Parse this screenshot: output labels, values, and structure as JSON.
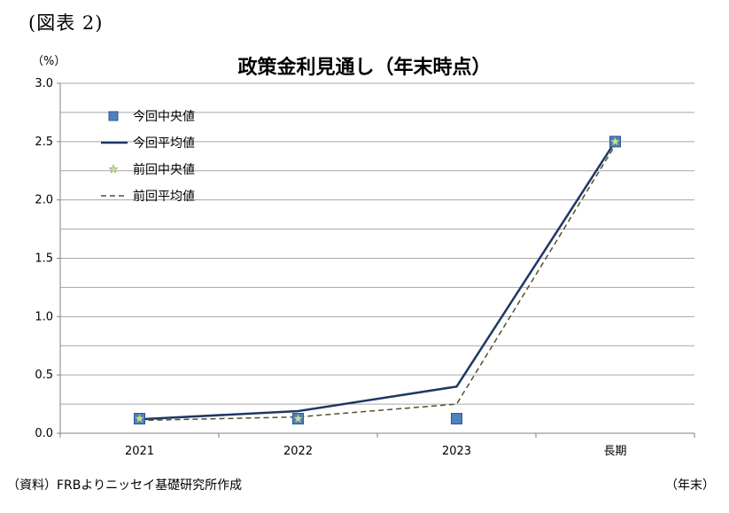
{
  "figure_label": "(図表 2)",
  "unit_label": "（%）",
  "source_note": "（資料）FRBよりニッセイ基礎研究所作成",
  "period_note": "（年末）",
  "chart_data": {
    "type": "line",
    "title": "政策金利見通し（年末時点）",
    "categories": [
      "2021",
      "2022",
      "2023",
      "長期"
    ],
    "ylim": [
      0,
      3.0
    ],
    "yticks": [
      "0.0",
      "0.5",
      "1.0",
      "1.5",
      "2.0",
      "2.5",
      "3.0"
    ],
    "grid": true,
    "legend_placement": "top-left",
    "series": [
      {
        "name": "今回中央値",
        "style": "marker",
        "values": [
          0.125,
          0.125,
          0.125,
          2.5
        ],
        "color": "#4f81bd"
      },
      {
        "name": "今回平均値",
        "style": "solid",
        "values": [
          0.12,
          0.19,
          0.4,
          2.5
        ],
        "color": "#1f3864"
      },
      {
        "name": "前回中央値",
        "style": "marker",
        "values": [
          0.125,
          0.125,
          null,
          2.5
        ],
        "color": "#c6e0a0"
      },
      {
        "name": "前回平均値",
        "style": "dashed",
        "values": [
          0.11,
          0.14,
          0.25,
          2.47
        ],
        "color": "#4f5228"
      }
    ]
  }
}
